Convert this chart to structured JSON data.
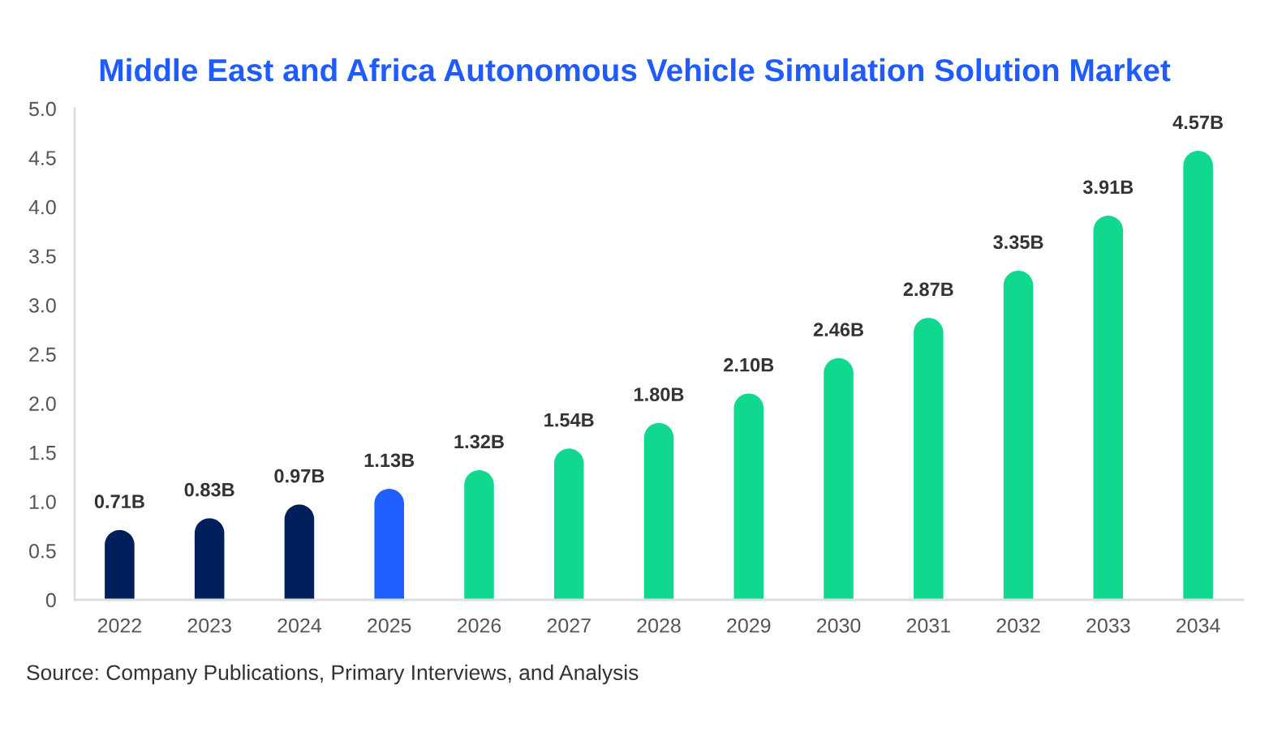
{
  "chart_data": {
    "type": "bar",
    "title": "Middle East and Africa Autonomous Vehicle Simulation Solution Market",
    "categories": [
      "2022",
      "2023",
      "2024",
      "2025",
      "2026",
      "2027",
      "2028",
      "2029",
      "2030",
      "2031",
      "2032",
      "2033",
      "2034"
    ],
    "values": [
      0.71,
      0.83,
      0.97,
      1.13,
      1.32,
      1.54,
      1.8,
      2.1,
      2.46,
      2.87,
      3.35,
      3.91,
      4.57
    ],
    "colors": [
      "#001f5b",
      "#001f5b",
      "#001f5b",
      "#1f5fff",
      "#10d98f",
      "#10d98f",
      "#10d98f",
      "#10d98f",
      "#10d98f",
      "#10d98f",
      "#10d98f",
      "#10d98f",
      "#10d98f"
    ],
    "value_labels": [
      "0.71B",
      "0.83B",
      "0.97B",
      "1.13B",
      "1.32B",
      "1.54B",
      "1.80B",
      "2.10B",
      "2.46B",
      "2.87B",
      "3.35B",
      "3.91B",
      "4.57B"
    ],
    "ylim": [
      0,
      5
    ],
    "yticks": [
      0,
      0.5,
      {
        "value": 1,
        "label": "1.0"
      },
      1.5,
      {
        "value": 2,
        "label": "2.0"
      },
      2.5,
      {
        "value": 3,
        "label": "3.0"
      },
      3.5,
      {
        "value": 4,
        "label": "4.0"
      },
      4.5,
      {
        "value": 5,
        "label": "5.0"
      }
    ],
    "grid": false,
    "legend": false,
    "annotations": [
      "Source: Company Publications, Primary Interviews, and Analysis"
    ]
  }
}
